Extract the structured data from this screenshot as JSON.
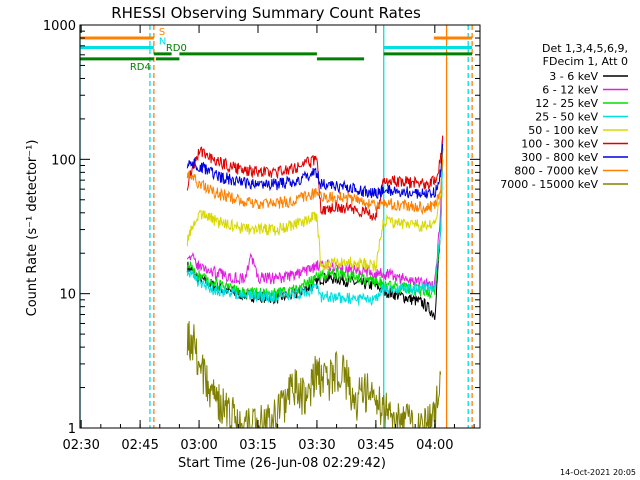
{
  "chart_data": {
    "type": "line",
    "title": "RHESSI Observing Summary Count Rates",
    "ylabel": "Count Rate (s⁻¹ detector⁻¹)",
    "xlabel": "Start Time (26-Jun-08 02:29:42)",
    "yscale": "log",
    "ylim": [
      1,
      1000
    ],
    "xlim": [
      "02:29:42",
      "04:11:30"
    ],
    "x_ticks": [
      "02:30",
      "02:45",
      "03:00",
      "03:15",
      "03:30",
      "03:45",
      "04:00"
    ],
    "y_ticks": [
      "1",
      "10",
      "100",
      "1000"
    ],
    "grid": false,
    "legend_placement": "right",
    "legend_title": [
      "Det 1,3,4,5,6,9,",
      "FDecim 1, Att 0"
    ],
    "footer_date": "14-Oct-2021 20:05",
    "series": [
      {
        "name": "3 - 6 keV",
        "color": "#000000",
        "x": [
          "02:57:00",
          "03:00:00",
          "03:05:00",
          "03:10:00",
          "03:15:00",
          "03:20:00",
          "03:25:00",
          "03:30:00",
          "03:31:00",
          "03:35:00",
          "03:40:00",
          "03:45:00",
          "03:47:00",
          "03:52:00",
          "03:57:00",
          "04:00:00",
          "04:01:30",
          "04:02:00"
        ],
        "y": [
          16,
          13,
          11,
          10,
          9.5,
          9.3,
          10,
          12,
          13,
          13,
          12,
          11.5,
          10.5,
          9.5,
          8.5,
          7,
          30,
          120
        ]
      },
      {
        "name": "6 - 12 keV",
        "color": "#e020e0",
        "x": [
          "02:57:00",
          "03:00:00",
          "03:05:00",
          "03:10:00",
          "03:12:00",
          "03:13:00",
          "03:15:00",
          "03:20:00",
          "03:25:00",
          "03:30:00",
          "03:31:00",
          "03:35:00",
          "03:40:00",
          "03:45:00",
          "03:47:00",
          "03:52:00",
          "03:57:00",
          "04:00:00",
          "04:01:30",
          "04:02:00"
        ],
        "y": [
          20,
          16,
          14,
          13,
          13,
          20,
          13,
          13,
          14,
          16,
          16,
          16,
          15,
          14,
          14,
          13,
          12,
          12,
          40,
          150
        ]
      },
      {
        "name": "12 - 25 keV",
        "color": "#00e000",
        "x": [
          "02:57:00",
          "03:00:00",
          "03:05:00",
          "03:10:00",
          "03:15:00",
          "03:20:00",
          "03:25:00",
          "03:30:00",
          "03:31:00",
          "03:35:00",
          "03:40:00",
          "03:45:00",
          "03:47:00",
          "03:52:00",
          "03:57:00",
          "04:00:00",
          "04:01:30",
          "04:02:00"
        ],
        "y": [
          17,
          13.5,
          11.5,
          10.5,
          10,
          10,
          11,
          13,
          14,
          14,
          13,
          12.5,
          12,
          11,
          10.5,
          10,
          30,
          100
        ]
      },
      {
        "name": "25 - 50 keV",
        "color": "#00e0e0",
        "x": [
          "02:57:00",
          "03:00:00",
          "03:05:00",
          "03:10:00",
          "03:15:00",
          "03:20:00",
          "03:25:00",
          "03:30:00",
          "03:31:00",
          "03:35:00",
          "03:40:00",
          "03:45:00",
          "03:47:00",
          "03:52:00",
          "03:57:00",
          "04:00:00",
          "04:01:30",
          "04:02:00"
        ],
        "y": [
          15,
          12,
          10.5,
          10,
          9.5,
          9.5,
          10,
          11,
          9.5,
          9.5,
          9,
          9,
          11,
          11,
          11,
          11,
          30,
          100
        ]
      },
      {
        "name": "50 - 100 keV",
        "color": "#d8d800",
        "x": [
          "02:57:00",
          "03:00:00",
          "03:05:00",
          "03:10:00",
          "03:15:00",
          "03:20:00",
          "03:25:00",
          "03:30:00",
          "03:31:00",
          "03:35:00",
          "03:40:00",
          "03:45:00",
          "03:47:00",
          "03:52:00",
          "03:57:00",
          "04:00:00",
          "04:01:30",
          "04:02:00"
        ],
        "y": [
          25,
          40,
          34,
          31,
          30,
          30,
          33,
          38,
          16,
          17,
          17,
          16,
          35,
          33,
          32,
          33,
          50,
          120
        ]
      },
      {
        "name": "100 - 300 keV",
        "color": "#e00000",
        "x": [
          "02:57:00",
          "03:00:00",
          "03:05:00",
          "03:10:00",
          "03:15:00",
          "03:20:00",
          "03:25:00",
          "03:30:00",
          "03:31:00",
          "03:35:00",
          "03:40:00",
          "03:45:00",
          "03:47:00",
          "03:52:00",
          "03:57:00",
          "04:00:00",
          "04:01:30",
          "04:02:00"
        ],
        "y": [
          65,
          115,
          95,
          85,
          80,
          80,
          88,
          100,
          42,
          45,
          42,
          38,
          70,
          68,
          66,
          68,
          100,
          150
        ]
      },
      {
        "name": "300 - 800 keV",
        "color": "#0000e0",
        "x": [
          "02:57:00",
          "03:00:00",
          "03:05:00",
          "03:10:00",
          "03:15:00",
          "03:20:00",
          "03:25:00",
          "03:30:00",
          "03:31:00",
          "03:35:00",
          "03:40:00",
          "03:45:00",
          "03:47:00",
          "03:52:00",
          "03:57:00",
          "04:00:00",
          "04:01:30",
          "04:02:00"
        ],
        "y": [
          95,
          90,
          75,
          68,
          65,
          65,
          70,
          80,
          65,
          63,
          60,
          55,
          60,
          57,
          55,
          57,
          80,
          130
        ]
      },
      {
        "name": "800 - 7000 keV",
        "color": "#ff8000",
        "x": [
          "02:57:00",
          "03:00:00",
          "03:05:00",
          "03:10:00",
          "03:15:00",
          "03:20:00",
          "03:25:00",
          "03:30:00",
          "03:31:00",
          "03:35:00",
          "03:40:00",
          "03:45:00",
          "03:47:00",
          "03:52:00",
          "03:57:00",
          "04:00:00",
          "04:01:30",
          "04:02:00"
        ],
        "y": [
          80,
          65,
          55,
          50,
          47,
          47,
          50,
          57,
          52,
          52,
          50,
          45,
          47,
          45,
          44,
          45,
          60,
          100
        ]
      },
      {
        "name": "7000 - 15000 keV",
        "color": "#808000",
        "x": [
          "02:57:00",
          "02:59:00",
          "03:00:00",
          "03:02:00",
          "03:04:00",
          "03:06:00",
          "03:08:00",
          "03:12:00",
          "03:15:00",
          "03:20:00",
          "03:24:00",
          "03:27:00",
          "03:30:00",
          "03:33:00",
          "03:36:00",
          "03:40:00",
          "03:44:00",
          "03:47:00",
          "03:52:00",
          "03:57:00",
          "04:00:00",
          "04:01:30"
        ],
        "y": [
          5,
          4,
          3,
          2.2,
          1.8,
          1.5,
          1.2,
          1.1,
          1.0,
          1.2,
          2.0,
          1.6,
          2.6,
          2.2,
          2.8,
          1.6,
          2.0,
          1.3,
          1.1,
          1.0,
          1.1,
          2.5
        ]
      }
    ],
    "flag_bars": [
      {
        "label": "S",
        "color": "#ff8000",
        "y": 800,
        "segments": [
          [
            "02:29:42",
            "02:48:30"
          ],
          [
            "03:59:45",
            "04:09:30"
          ]
        ]
      },
      {
        "label": "N",
        "color": "#00e0e0",
        "y": 680,
        "segments": [
          [
            "02:29:42",
            "02:48:30"
          ],
          [
            "03:47:00",
            "04:09:30"
          ]
        ]
      },
      {
        "label": "RD0",
        "color": "#008000",
        "y": 610,
        "segments": [
          [
            "02:48:30",
            "02:53:00"
          ],
          [
            "02:55:00",
            "03:30:00"
          ],
          [
            "03:47:00",
            "04:09:30"
          ]
        ]
      },
      {
        "label": "RD4",
        "color": "#008000",
        "y": 560,
        "segments": [
          [
            "02:29:42",
            "02:48:30"
          ],
          [
            "02:49:00",
            "02:55:00"
          ],
          [
            "03:30:00",
            "03:42:00"
          ]
        ]
      }
    ],
    "vertical_markers": [
      {
        "x": "02:29:42",
        "color": "#00e0e0",
        "style": "solid"
      },
      {
        "x": "02:47:30",
        "color": "#00e0e0",
        "style": "dashed"
      },
      {
        "x": "02:48:30",
        "color": "#ff8000",
        "style": "dashed"
      },
      {
        "x": "03:47:00",
        "color": "#00e0e0",
        "style": "solid"
      },
      {
        "x": "04:03:00",
        "color": "#ff8000",
        "style": "solid"
      },
      {
        "x": "04:08:30",
        "color": "#00e0e0",
        "style": "dashed"
      },
      {
        "x": "04:09:30",
        "color": "#ff8000",
        "style": "dashed"
      }
    ]
  }
}
